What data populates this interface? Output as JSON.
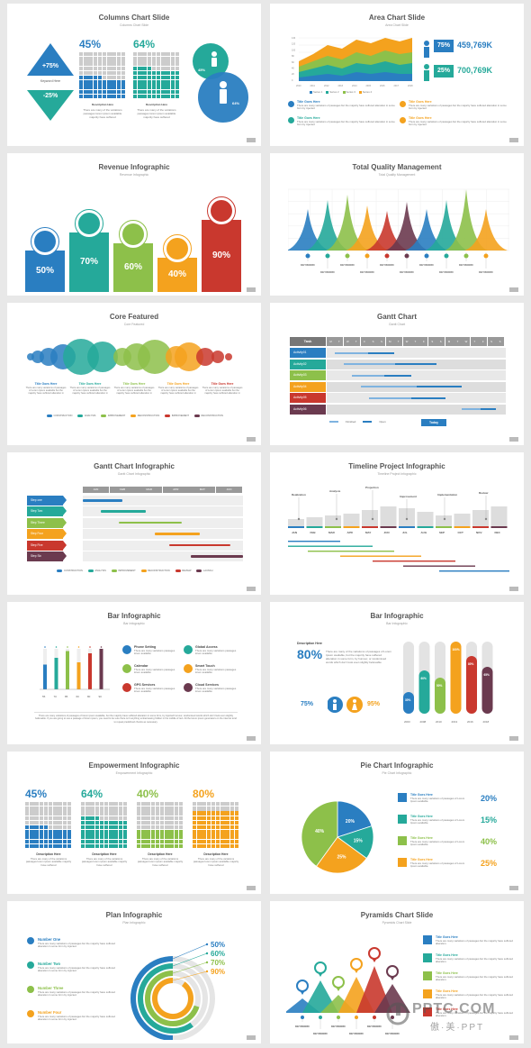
{
  "slides": {
    "s1": {
      "title": "Columns Chart Slide",
      "subtitle": "Columns Chart Slide",
      "up": "+75%",
      "keyword": "Keyword Here",
      "down": "-25%",
      "p1": "45%",
      "p2": "64%",
      "desc_title": "Description Here",
      "desc": "There are many of the variations passages lorem ipsum available majority have suffered",
      "c1": "45%",
      "c2": "64%"
    },
    "s2": {
      "title": "Area Chart Slide",
      "subtitle": "Area Chart Slide",
      "yticks": [
        "140",
        "120",
        "100",
        "80",
        "60",
        "40",
        "20",
        "0"
      ],
      "xticks": [
        "2010",
        "2011",
        "2012",
        "2013",
        "2014",
        "2015",
        "2016",
        "2017",
        "2018"
      ],
      "legend": [
        "Series 1",
        "Series 2",
        "Series 3",
        "Series 4"
      ],
      "v1p": "75%",
      "v1": "459,769K",
      "v2p": "25%",
      "v2": "700,769K",
      "item_title": "Title Goes Here",
      "item_text": "There are many variations of passages but the majority have suffered alteration in some form by injected"
    },
    "s3": {
      "title": "Revenue Infographic",
      "subtitle": "Revenue Infographic",
      "label": "Title Goes Here",
      "bars": [
        "50%",
        "70%",
        "60%",
        "40%",
        "90%"
      ]
    },
    "s4": {
      "title": "Total Quality Management",
      "subtitle": "Total Quality Management",
      "keyword": "KEYWORD"
    },
    "s5": {
      "title": "Core Featured",
      "subtitle": "Core Featured",
      "label": "Title Goes Here",
      "text": "There are many variations of passages of Lorem Ipsum available but the majority have suffered alteration in",
      "legend": [
        "CONSTRUCTION",
        "ANALYSIS",
        "IMPROVEMENT",
        "RECONSTRUCTION",
        "IMPROVEMENT",
        "RECONSTRUCTION"
      ]
    },
    "s6": {
      "title": "Gantt Chart",
      "subtitle": "Gantt Chart",
      "task": "Task",
      "cols": [
        "M",
        "T",
        "W",
        "T",
        "F",
        "S",
        "S",
        "M",
        "T",
        "W",
        "T",
        "F",
        "S",
        "S",
        "M",
        "T",
        "W",
        "T",
        "F",
        "S",
        "S"
      ],
      "rows": [
        "Activity01",
        "Activity02",
        "Activity03",
        "Activity04",
        "Activity05",
        "Activity06"
      ],
      "finished": "Finished",
      "open": "Open",
      "today": "Today"
    },
    "s7": {
      "title": "Gantt Chart Infographic",
      "subtitle": "Gantt Chart Infographic",
      "months": [
        "JAN",
        "FEB",
        "MAR",
        "APR",
        "MAY",
        "JUN"
      ],
      "steps": [
        "Step one",
        "Step Two",
        "Step Three",
        "Step Four",
        "Step Five",
        "Step Six"
      ],
      "legend": [
        "CONSTRUCTION",
        "ANALYSIS",
        "IMPROVEMENT",
        "RECONSTRUCTION",
        "REVIEW",
        "LAUNCH"
      ]
    },
    "s8": {
      "title": "Timeline Project  Infographic",
      "subtitle": "Timeline Project  Infographic",
      "labels": [
        "Realization",
        "Analysis",
        "Projection",
        "Improvement",
        "Implementation",
        "Review"
      ],
      "months": [
        "JAN",
        "FEB",
        "MAR",
        "APR",
        "MAY",
        "JUN",
        "JUL",
        "AUG",
        "SEP",
        "OCT",
        "NOV",
        "DEC"
      ]
    },
    "s9": {
      "title": "Bar Infographic",
      "subtitle": "Bar Infographic",
      "xticks": [
        "55",
        "70",
        "85",
        "60",
        "80",
        "90"
      ],
      "items": [
        "Phone Setting",
        "Global Access",
        "Calendar",
        "Smart Touch",
        "GPS Services",
        "Cloud Services"
      ],
      "item_text": "There are many variations passages lorem available",
      "footer": "There are many variations of passages of lorem ipsum available, but the majority have suffered alteration in some form, by injected humour, randomised words which don't look even slightly believable. If you are going to use a passage of lorem ipsum, you need to be sure there isn't anything embarrassing hidden in the middle of text. All the lorem ipsum generators on the internet tend to repeat predefined chunks as necessary."
    },
    "s10": {
      "title": "Bar Infographic",
      "subtitle": "Bar Infographic",
      "desc_title": "Description Here",
      "big": "80%",
      "desc": "There are many of the variations of passages of Lorem Ipsum available, but the majority have suffered alteration in some form, by humour, or randomised words which don't look even slightly believable",
      "men": "75%",
      "women": "95%",
      "bars": [
        "30%",
        "60%",
        "50%",
        "100%",
        "80%",
        "65%"
      ],
      "years": [
        "2003",
        "2008",
        "2010",
        "2013",
        "2016",
        "2018"
      ]
    },
    "s11": {
      "title": "Empowerment Infographic",
      "subtitle": "Empowerment Infographic",
      "pcts": [
        "45%",
        "64%",
        "40%",
        "80%"
      ],
      "desc_title": "Description Here",
      "desc": "There are many of the variations passages lorem ipsum available majority have suffered"
    },
    "s12": {
      "title": "Pie Chart Infographic",
      "subtitle": "Pie Chart Infographic",
      "slices": [
        "20%",
        "15%",
        "25%",
        "40%"
      ],
      "item_title": "Title Goes Here",
      "item_text": "There are many variations of passages of Lorem Ipsum available.",
      "pcts": [
        "20%",
        "15%",
        "40%",
        "25%"
      ]
    },
    "s13": {
      "title": "Plan Infographic",
      "subtitle": "Plan Infographic",
      "numbers": [
        "Number One",
        "Number Two",
        "Number Three",
        "Number Four"
      ],
      "text": "There are many variations of passages but the majority have suffered alteration in some form by injected.",
      "pcts": [
        "50%",
        "60%",
        "70%",
        "90%"
      ]
    },
    "s14": {
      "title": "Pyramids Chart Slide",
      "subtitle": "Pyramids Chart Slide",
      "keyword": "KEYWORD",
      "item_title": "Title Goes Here",
      "item_text": "There are many variations of passages but the majority have suffered alteration."
    }
  },
  "watermark": "PPTC.COM",
  "watermark_cn": "傲·美·PPT"
}
